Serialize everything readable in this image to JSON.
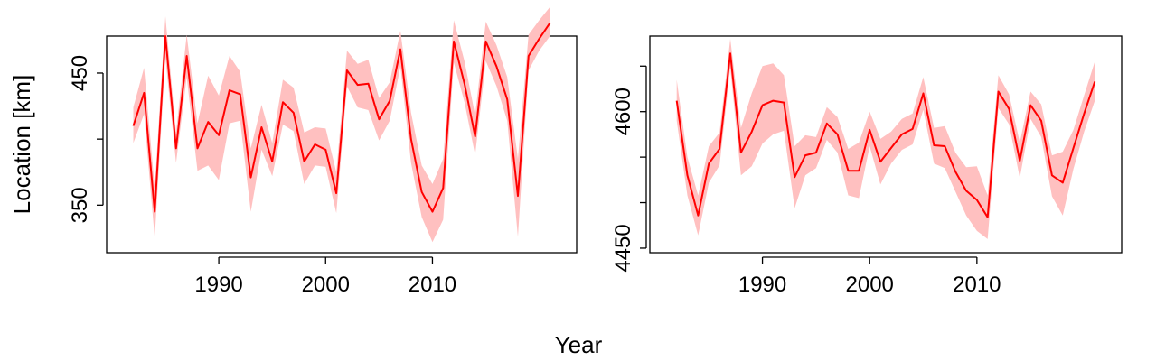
{
  "figure": {
    "ylabel": "Location [km]",
    "xlabel": "Year"
  },
  "chart_data": [
    {
      "type": "line",
      "title": "",
      "xlabel": "",
      "ylabel": "Location [km]",
      "xlim": [
        1979.5,
        2023.5
      ],
      "ylim": [
        314,
        478
      ],
      "xticks": [
        1990,
        2000,
        2010
      ],
      "yticks": [
        350,
        400,
        450
      ],
      "ytick_labels": [
        "350",
        "",
        "450"
      ],
      "grid": false,
      "colors": {
        "line": "#ff0000",
        "band": "#ffc0c0"
      },
      "series": [
        {
          "x": [
            1982,
            1983,
            1984,
            1985,
            1986,
            1987,
            1988,
            1989,
            1990,
            1991,
            1992,
            1993,
            1994,
            1995,
            1996,
            1997,
            1998,
            1999,
            2000,
            2001,
            2002,
            2003,
            2004,
            2005,
            2006,
            2007,
            2008,
            2009,
            2010,
            2011,
            2012,
            2013,
            2014,
            2015,
            2016,
            2017,
            2018,
            2019,
            2020,
            2021
          ],
          "y": [
            410,
            435,
            345,
            478,
            393,
            463,
            393,
            413,
            403,
            437,
            434,
            371,
            409,
            383,
            428,
            420,
            383,
            396,
            392,
            359,
            452,
            441,
            442,
            415,
            429,
            468,
            400,
            360,
            345,
            363,
            474,
            442,
            402,
            474,
            455,
            430,
            357,
            463,
            476,
            488
          ],
          "lower": [
            397,
            419,
            325,
            462,
            382,
            447,
            376,
            380,
            369,
            412,
            414,
            345,
            392,
            372,
            411,
            406,
            366,
            380,
            379,
            344,
            440,
            424,
            422,
            399,
            414,
            455,
            382,
            341,
            322,
            339,
            458,
            428,
            388,
            459,
            440,
            414,
            326,
            452,
            467,
            478
          ],
          "upper": [
            424,
            454,
            363,
            493,
            405,
            479,
            412,
            448,
            433,
            463,
            451,
            393,
            426,
            397,
            445,
            439,
            405,
            409,
            408,
            375,
            467,
            457,
            460,
            431,
            443,
            482,
            420,
            380,
            366,
            385,
            490,
            459,
            418,
            489,
            471,
            447,
            385,
            479,
            490,
            500
          ]
        }
      ]
    },
    {
      "type": "line",
      "title": "",
      "xlabel": "",
      "ylabel": "",
      "xlim": [
        1979.5,
        2023.5
      ],
      "ylim": [
        4445,
        4683
      ],
      "xticks": [
        1990,
        2000,
        2010
      ],
      "yticks": [
        4450,
        4500,
        4550,
        4600,
        4650
      ],
      "ytick_labels": [
        "4450",
        "",
        "",
        "4600",
        ""
      ],
      "grid": false,
      "colors": {
        "line": "#ff0000",
        "band": "#ffc0c0"
      },
      "series": [
        {
          "x": [
            1982,
            1983,
            1984,
            1985,
            1986,
            1987,
            1988,
            1989,
            1990,
            1991,
            1992,
            1993,
            1994,
            1995,
            1996,
            1997,
            1998,
            1999,
            2000,
            2001,
            2002,
            2003,
            2004,
            2005,
            2006,
            2007,
            2008,
            2009,
            2010,
            2011,
            2012,
            2013,
            2014,
            2015,
            2016,
            2017,
            2018,
            2019,
            2020,
            2021
          ],
          "y": [
            4612,
            4530,
            4486,
            4543,
            4559,
            4664,
            4555,
            4578,
            4607,
            4612,
            4610,
            4528,
            4552,
            4555,
            4587,
            4575,
            4535,
            4535,
            4580,
            4545,
            4560,
            4575,
            4581,
            4620,
            4563,
            4562,
            4534,
            4513,
            4503,
            4484,
            4622,
            4603,
            4546,
            4607,
            4590,
            4530,
            4522,
            4560,
            4598,
            4633
          ],
          "lower": [
            4590,
            4508,
            4464,
            4522,
            4541,
            4648,
            4530,
            4540,
            4565,
            4575,
            4579,
            4494,
            4530,
            4538,
            4569,
            4555,
            4508,
            4505,
            4562,
            4520,
            4543,
            4558,
            4564,
            4602,
            4543,
            4538,
            4512,
            4486,
            4469,
            4460,
            4604,
            4586,
            4527,
            4592,
            4572,
            4507,
            4486,
            4537,
            4578,
            4612
          ],
          "upper": [
            4635,
            4550,
            4508,
            4562,
            4577,
            4680,
            4582,
            4620,
            4650,
            4653,
            4640,
            4562,
            4574,
            4572,
            4605,
            4594,
            4559,
            4566,
            4600,
            4570,
            4578,
            4592,
            4598,
            4638,
            4582,
            4584,
            4555,
            4539,
            4540,
            4508,
            4640,
            4619,
            4566,
            4622,
            4608,
            4552,
            4556,
            4580,
            4618,
            4655
          ]
        }
      ]
    }
  ]
}
